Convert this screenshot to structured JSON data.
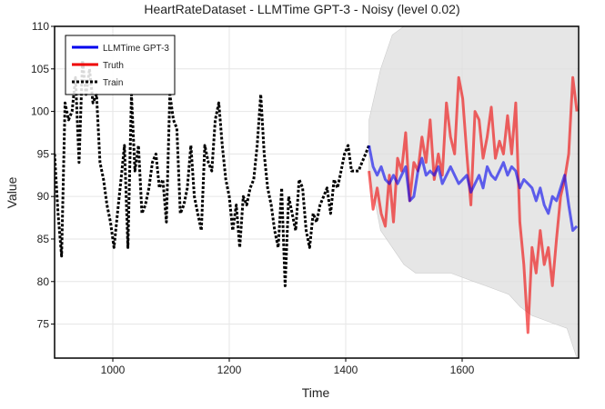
{
  "chart_data": {
    "type": "line",
    "title": "HeartRateDataset - LLMTime GPT-3 - Noisy (level 0.02)",
    "xlabel": "Time",
    "ylabel": "Value",
    "xlim": [
      900,
      1800
    ],
    "ylim": [
      71,
      110
    ],
    "xticks": [
      1000,
      1200,
      1400,
      1600
    ],
    "yticks": [
      75,
      80,
      85,
      90,
      95,
      100,
      105,
      110
    ],
    "grid": true,
    "legend_position": "top-left",
    "series": [
      {
        "name": "LLMTime GPT-3",
        "color": "#0000ee",
        "style": "solid",
        "x": [
          1440,
          1447,
          1454,
          1461,
          1468,
          1475,
          1482,
          1489,
          1496,
          1503,
          1510,
          1517,
          1524,
          1531,
          1538,
          1545,
          1552,
          1559,
          1566,
          1573,
          1580,
          1587,
          1594,
          1601,
          1608,
          1615,
          1622,
          1629,
          1636,
          1643,
          1650,
          1657,
          1664,
          1671,
          1678,
          1685,
          1692,
          1699,
          1706,
          1713,
          1720,
          1727,
          1734,
          1741,
          1748,
          1755,
          1762,
          1769,
          1776,
          1783,
          1790,
          1797
        ],
        "values": [
          96,
          93.5,
          92.5,
          93.5,
          92,
          91.5,
          92.5,
          91.5,
          92.5,
          93.5,
          89.5,
          90,
          93,
          94.5,
          92.5,
          93,
          92.5,
          93.5,
          91.5,
          92.5,
          93.5,
          92.5,
          91.5,
          92,
          92.5,
          90.5,
          91.5,
          92.5,
          91,
          93.5,
          92.5,
          92,
          93,
          94,
          92.5,
          93.5,
          93,
          91,
          92,
          91.5,
          91,
          89.5,
          91,
          89,
          88,
          90,
          89.5,
          91,
          92.5,
          89,
          86,
          86.5
        ]
      },
      {
        "name": "Truth",
        "color": "#ee0000",
        "style": "solid",
        "x": [
          1440,
          1447,
          1454,
          1461,
          1468,
          1475,
          1482,
          1489,
          1496,
          1503,
          1510,
          1517,
          1524,
          1531,
          1538,
          1545,
          1552,
          1559,
          1566,
          1573,
          1580,
          1587,
          1594,
          1601,
          1608,
          1615,
          1622,
          1629,
          1636,
          1643,
          1650,
          1657,
          1664,
          1671,
          1678,
          1685,
          1692,
          1699,
          1706,
          1713,
          1720,
          1727,
          1734,
          1741,
          1748,
          1755,
          1762,
          1769,
          1776,
          1783,
          1790,
          1797
        ],
        "values": [
          93,
          88.5,
          91,
          88,
          86.5,
          92.5,
          87,
          94.5,
          93,
          97.5,
          89.5,
          94,
          93,
          97,
          94,
          99,
          92,
          95,
          92.5,
          101,
          97,
          95,
          104,
          101.5,
          95,
          89,
          100,
          99,
          94.5,
          97,
          100.5,
          94.5,
          96.5,
          95,
          99.5,
          95,
          101,
          87,
          82,
          74,
          84,
          81,
          86,
          82,
          84,
          79.5,
          85,
          90,
          92,
          95,
          104,
          100
        ]
      },
      {
        "name": "Train",
        "color": "#000000",
        "style": "dotted",
        "x": [
          900,
          906,
          912,
          918,
          924,
          930,
          936,
          942,
          948,
          954,
          960,
          966,
          972,
          978,
          984,
          990,
          996,
          1002,
          1008,
          1014,
          1020,
          1026,
          1032,
          1038,
          1044,
          1050,
          1056,
          1062,
          1068,
          1074,
          1080,
          1086,
          1092,
          1098,
          1104,
          1110,
          1116,
          1122,
          1128,
          1134,
          1140,
          1146,
          1152,
          1158,
          1164,
          1170,
          1176,
          1182,
          1188,
          1194,
          1200,
          1206,
          1212,
          1218,
          1224,
          1230,
          1236,
          1242,
          1248,
          1254,
          1260,
          1266,
          1272,
          1278,
          1284,
          1290,
          1296,
          1302,
          1308,
          1314,
          1320,
          1326,
          1332,
          1338,
          1344,
          1350,
          1356,
          1362,
          1368,
          1374,
          1380,
          1386,
          1392,
          1398,
          1404,
          1410,
          1416,
          1422,
          1428,
          1434,
          1440
        ],
        "values": [
          95,
          88,
          83,
          101,
          99,
          100,
          104,
          94,
          106,
          102,
          105,
          101,
          102,
          94,
          92,
          89,
          87,
          84,
          88,
          92,
          96,
          84,
          102,
          93,
          96,
          88,
          89,
          91,
          94,
          95,
          91,
          92,
          87,
          102,
          99,
          98,
          88,
          89,
          91,
          96,
          90,
          88,
          86,
          96,
          94,
          93,
          99,
          101,
          96,
          92,
          90,
          86,
          89,
          84,
          90,
          89,
          91,
          92,
          96,
          102,
          95,
          91,
          89,
          86,
          84,
          91,
          79.5,
          90,
          88,
          86,
          92,
          91,
          86,
          84,
          88,
          87,
          89,
          90,
          91,
          88,
          92,
          91,
          93,
          95,
          96,
          93,
          93,
          93,
          94,
          95,
          96
        ]
      }
    ],
    "uncertainty_band": {
      "x": [
        1440,
        1460,
        1480,
        1500,
        1520,
        1540,
        1560,
        1580,
        1600,
        1620,
        1640,
        1660,
        1680,
        1700,
        1720,
        1740,
        1760,
        1780,
        1797
      ],
      "upper": [
        99,
        105,
        109,
        110,
        110,
        110,
        110,
        110,
        110,
        110,
        110,
        110,
        110,
        110,
        110,
        110,
        110,
        110,
        110
      ],
      "lower": [
        93,
        86,
        84,
        82,
        81,
        81,
        81,
        81,
        80.5,
        80,
        79.5,
        79,
        78.5,
        77,
        76,
        75.5,
        75,
        74.5,
        71
      ],
      "color": "#dddddd"
    }
  }
}
